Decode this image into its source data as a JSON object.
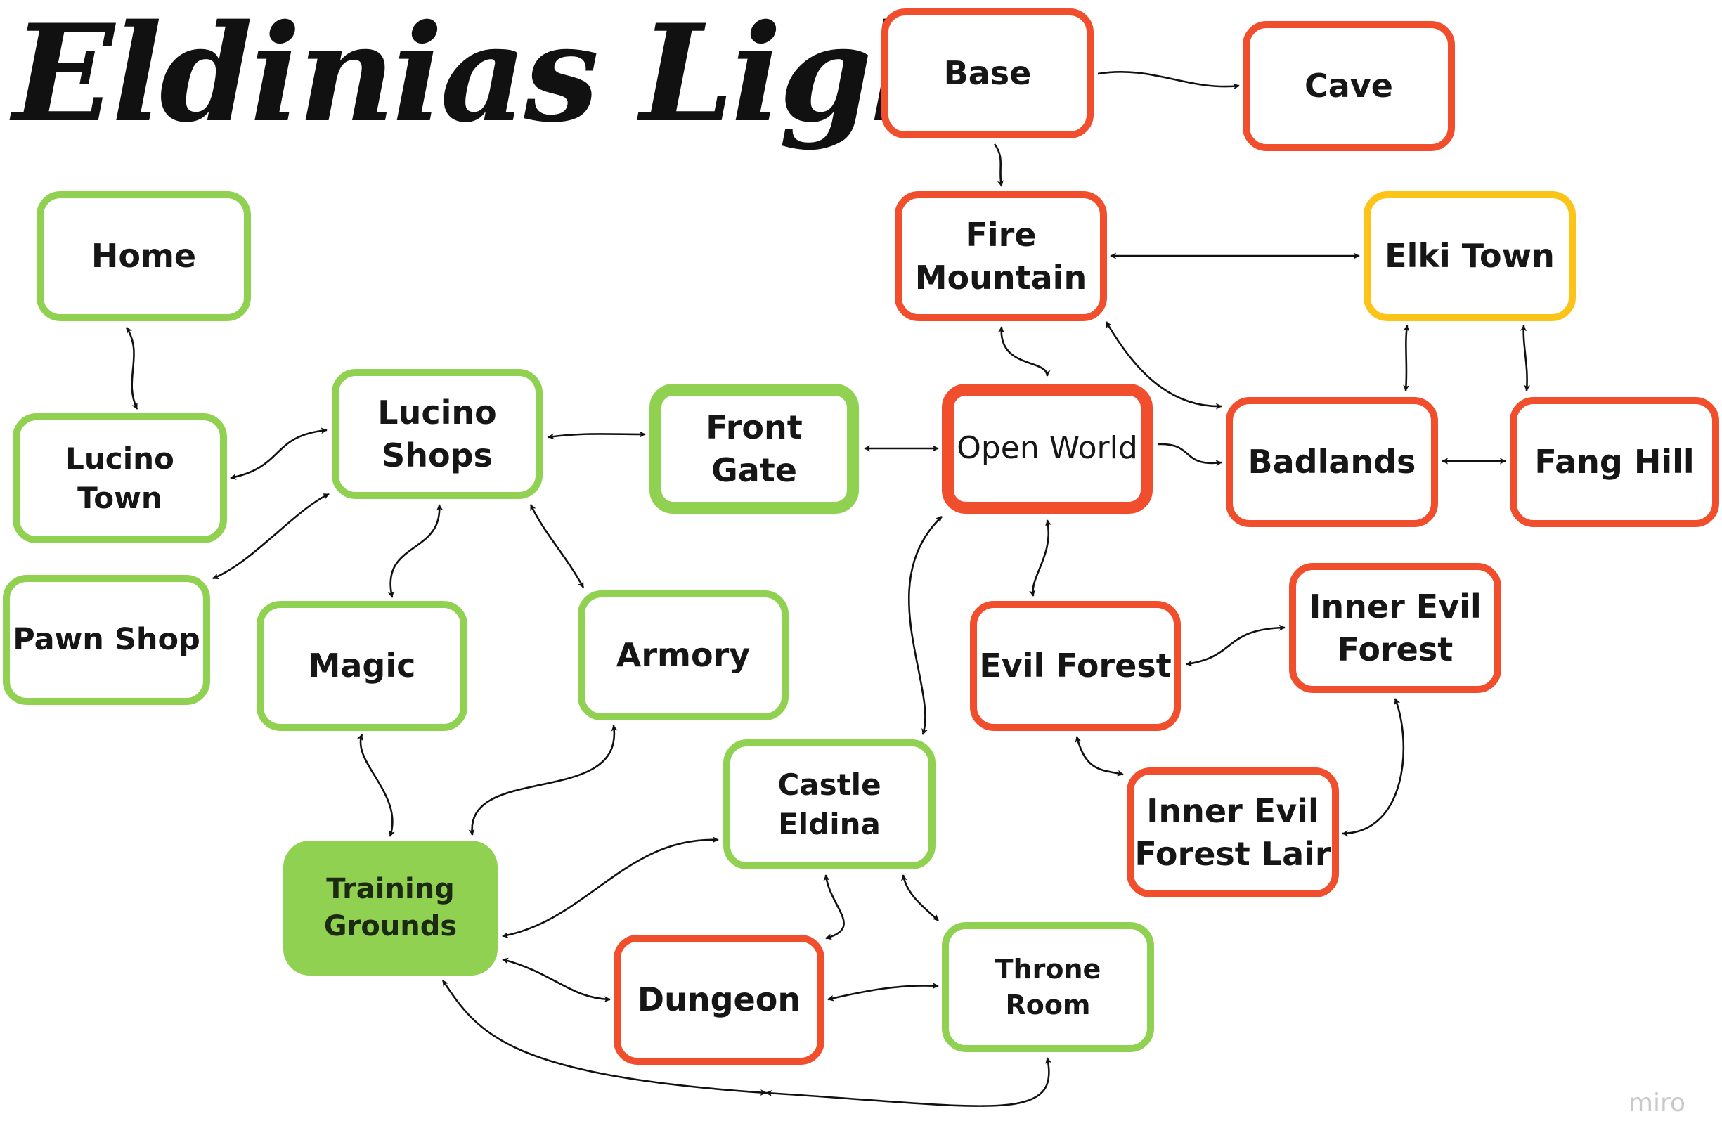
{
  "title": "Eldinias Light",
  "watermark": "miro",
  "colors": {
    "green": "#91d152",
    "red": "#f04e2c",
    "yellow": "#fcc419",
    "arrow": "#111111",
    "text": "#161616"
  },
  "nodes": {
    "home": {
      "label": "Home",
      "color": "green"
    },
    "lucino_town": {
      "label": "Lucino Town",
      "color": "green"
    },
    "pawn_shop": {
      "label": "Pawn Shop",
      "color": "green"
    },
    "lucino_shops": {
      "label": "Lucino\nShops",
      "color": "green"
    },
    "front_gate": {
      "label": "Front Gate",
      "color": "green",
      "emphasis": "thick border"
    },
    "magic": {
      "label": "Magic",
      "color": "green"
    },
    "armory": {
      "label": "Armory",
      "color": "green"
    },
    "training_grounds": {
      "label": "Training\nGrounds",
      "color": "green",
      "emphasis": "filled"
    },
    "castle_eldina": {
      "label": "Castle Eldina",
      "color": "green"
    },
    "throne_room": {
      "label": "Throne Room",
      "color": "green"
    },
    "dungeon": {
      "label": "Dungeon",
      "color": "red"
    },
    "open_world": {
      "label": "Open World",
      "color": "red",
      "emphasis": "thick border"
    },
    "evil_forest": {
      "label": "Evil Forest",
      "color": "red"
    },
    "inner_evil_forest": {
      "label": "Inner Evil\nForest",
      "color": "red"
    },
    "inner_evil_forest_lair": {
      "label": "Inner Evil\nForest Lair",
      "color": "red"
    },
    "badlands": {
      "label": "Badlands",
      "color": "red"
    },
    "fang_hill": {
      "label": "Fang Hill",
      "color": "red"
    },
    "fire_mountain": {
      "label": "Fire\nMountain",
      "color": "red"
    },
    "base": {
      "label": "Base",
      "color": "red"
    },
    "cave": {
      "label": "Cave",
      "color": "red"
    },
    "elki_town": {
      "label": "Elki Town",
      "color": "yellow"
    }
  },
  "edges": [
    {
      "from": "home",
      "to": "lucino_town",
      "direction": "both"
    },
    {
      "from": "lucino_town",
      "to": "lucino_shops",
      "direction": "both"
    },
    {
      "from": "pawn_shop",
      "to": "lucino_shops",
      "direction": "both"
    },
    {
      "from": "lucino_shops",
      "to": "front_gate",
      "direction": "both"
    },
    {
      "from": "lucino_shops",
      "to": "magic",
      "direction": "both"
    },
    {
      "from": "lucino_shops",
      "to": "armory",
      "direction": "both"
    },
    {
      "from": "front_gate",
      "to": "open_world",
      "direction": "both"
    },
    {
      "from": "magic",
      "to": "training_grounds",
      "direction": "both"
    },
    {
      "from": "armory",
      "to": "training_grounds",
      "direction": "both"
    },
    {
      "from": "training_grounds",
      "to": "castle_eldina",
      "direction": "both"
    },
    {
      "from": "training_grounds",
      "to": "dungeon",
      "direction": "both"
    },
    {
      "from": "training_grounds",
      "to": "throne_room",
      "direction": "both"
    },
    {
      "from": "castle_eldina",
      "to": "dungeon",
      "direction": "both"
    },
    {
      "from": "castle_eldina",
      "to": "throne_room",
      "direction": "both"
    },
    {
      "from": "dungeon",
      "to": "throne_room",
      "direction": "both"
    },
    {
      "from": "castle_eldina",
      "to": "open_world",
      "direction": "both"
    },
    {
      "from": "open_world",
      "to": "evil_forest",
      "direction": "both"
    },
    {
      "from": "open_world",
      "to": "badlands",
      "direction": "both"
    },
    {
      "from": "open_world",
      "to": "fire_mountain",
      "direction": "to"
    },
    {
      "from": "evil_forest",
      "to": "inner_evil_forest",
      "direction": "both"
    },
    {
      "from": "evil_forest",
      "to": "inner_evil_forest_lair",
      "direction": "both"
    },
    {
      "from": "inner_evil_forest",
      "to": "inner_evil_forest_lair",
      "direction": "both"
    },
    {
      "from": "badlands",
      "to": "fang_hill",
      "direction": "both"
    },
    {
      "from": "badlands",
      "to": "fire_mountain",
      "direction": "both"
    },
    {
      "from": "badlands",
      "to": "elki_town",
      "direction": "both"
    },
    {
      "from": "fang_hill",
      "to": "elki_town",
      "direction": "both"
    },
    {
      "from": "fire_mountain",
      "to": "elki_town",
      "direction": "both"
    },
    {
      "from": "base",
      "to": "cave",
      "direction": "both"
    },
    {
      "from": "base",
      "to": "fire_mountain",
      "direction": "to"
    },
    {
      "from": "cave",
      "to": "fire_mountain",
      "direction": "to"
    }
  ]
}
